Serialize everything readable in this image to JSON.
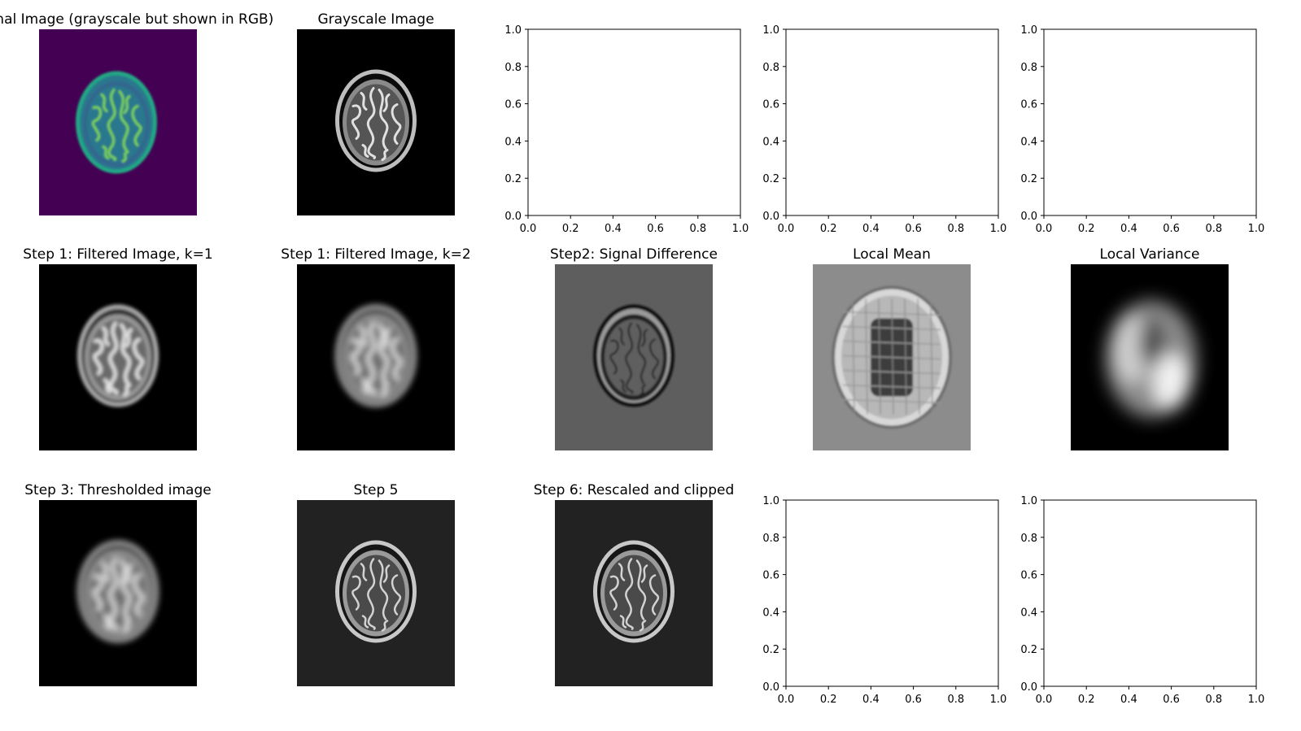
{
  "chart_data": [
    {
      "type": "image",
      "title": "Original Image (grayscale but shown in RGB)",
      "colormap": "viridis"
    },
    {
      "type": "image",
      "title": "Grayscale Image",
      "colormap": "gray",
      "style": "brain",
      "background": "#000000"
    },
    {
      "type": "empty_axes",
      "title": "",
      "xlim": [
        0.0,
        1.0
      ],
      "ylim": [
        0.0,
        1.0
      ],
      "xticks": [
        "0.0",
        "0.2",
        "0.4",
        "0.6",
        "0.8",
        "1.0"
      ],
      "yticks": [
        "0.0",
        "0.2",
        "0.4",
        "0.6",
        "0.8",
        "1.0"
      ]
    },
    {
      "type": "empty_axes",
      "title": "",
      "xlim": [
        0.0,
        1.0
      ],
      "ylim": [
        0.0,
        1.0
      ],
      "xticks": [
        "0.0",
        "0.2",
        "0.4",
        "0.6",
        "0.8",
        "1.0"
      ],
      "yticks": [
        "0.0",
        "0.2",
        "0.4",
        "0.6",
        "0.8",
        "1.0"
      ]
    },
    {
      "type": "empty_axes",
      "title": "",
      "xlim": [
        0.0,
        1.0
      ],
      "ylim": [
        0.0,
        1.0
      ],
      "xticks": [
        "0.0",
        "0.2",
        "0.4",
        "0.6",
        "0.8",
        "1.0"
      ],
      "yticks": [
        "0.0",
        "0.2",
        "0.4",
        "0.6",
        "0.8",
        "1.0"
      ]
    },
    {
      "type": "image",
      "title": "Step 1: Filtered Image, k=1",
      "colormap": "gray",
      "style": "blur1",
      "background": "#000000"
    },
    {
      "type": "image",
      "title": "Step 1: Filtered Image, k=2",
      "colormap": "gray",
      "style": "blur2",
      "background": "#000000"
    },
    {
      "type": "image",
      "title": "Step2: Signal Difference",
      "colormap": "gray",
      "style": "edges",
      "background": "#5e5e5e"
    },
    {
      "type": "image",
      "title": "Local Mean",
      "colormap": "gray",
      "style": "mean",
      "background": "#8c8c8c"
    },
    {
      "type": "image",
      "title": "Local Variance",
      "colormap": "gray",
      "style": "variance",
      "background": "#000000"
    },
    {
      "type": "image",
      "title": "Step 3: Thresholded image",
      "colormap": "gray",
      "style": "blur2",
      "background": "#000000"
    },
    {
      "type": "image",
      "title": "Step 5",
      "colormap": "gray",
      "style": "enhanced",
      "background": "#222222"
    },
    {
      "type": "image",
      "title": "Step 6: Rescaled and clipped",
      "colormap": "gray",
      "style": "enhanced",
      "background": "#222222"
    },
    {
      "type": "empty_axes",
      "title": "",
      "xlim": [
        0.0,
        1.0
      ],
      "ylim": [
        0.0,
        1.0
      ],
      "xticks": [
        "0.0",
        "0.2",
        "0.4",
        "0.6",
        "0.8",
        "1.0"
      ],
      "yticks": [
        "0.0",
        "0.2",
        "0.4",
        "0.6",
        "0.8",
        "1.0"
      ]
    },
    {
      "type": "empty_axes",
      "title": "",
      "xlim": [
        0.0,
        1.0
      ],
      "ylim": [
        0.0,
        1.0
      ],
      "xticks": [
        "0.0",
        "0.2",
        "0.4",
        "0.6",
        "0.8",
        "1.0"
      ],
      "yticks": [
        "0.0",
        "0.2",
        "0.4",
        "0.6",
        "0.8",
        "1.0"
      ]
    }
  ]
}
